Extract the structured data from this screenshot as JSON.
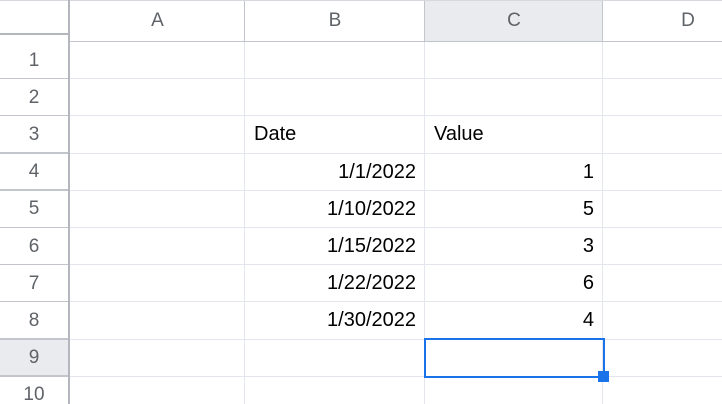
{
  "app": {
    "type": "spreadsheet-grid",
    "description": "Spreadsheet worksheet grid with date/value data and an active empty cell selection"
  },
  "colors": {
    "selection_blue": "#1a73e8",
    "header_highlight": "#e9ebef",
    "header_text": "#5f6368",
    "cell_text": "#000000",
    "gridline": "#e3e6ed",
    "header_border": "#b3b6bd"
  },
  "column_headers": [
    "A",
    "B",
    "C",
    "D"
  ],
  "row_headers": [
    "1",
    "2",
    "3",
    "4",
    "5",
    "6",
    "7",
    "8",
    "9",
    "10"
  ],
  "cells": [
    {
      "ref": "B3",
      "value": "Date",
      "align": "left"
    },
    {
      "ref": "C3",
      "value": "Value",
      "align": "left"
    },
    {
      "ref": "B4",
      "value": "1/1/2022",
      "align": "right"
    },
    {
      "ref": "C4",
      "value": "1",
      "align": "right"
    },
    {
      "ref": "B5",
      "value": "1/10/2022",
      "align": "right"
    },
    {
      "ref": "C5",
      "value": "5",
      "align": "right"
    },
    {
      "ref": "B6",
      "value": "1/15/2022",
      "align": "right"
    },
    {
      "ref": "C6",
      "value": "3",
      "align": "right"
    },
    {
      "ref": "B7",
      "value": "1/22/2022",
      "align": "right"
    },
    {
      "ref": "C7",
      "value": "6",
      "align": "right"
    },
    {
      "ref": "B8",
      "value": "1/30/2022",
      "align": "right"
    },
    {
      "ref": "C8",
      "value": "4",
      "align": "right"
    }
  ],
  "selection": {
    "active_cell": "C9",
    "highlighted_column": "C",
    "highlighted_row": "9"
  }
}
